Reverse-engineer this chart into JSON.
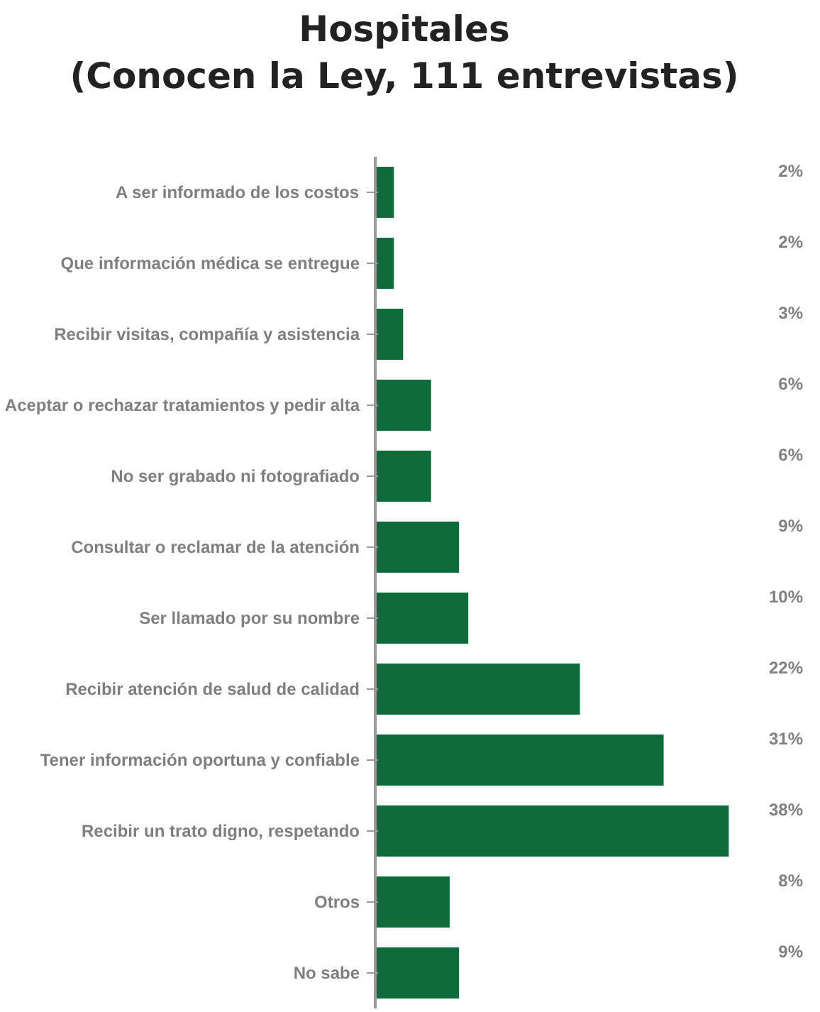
{
  "chart_data": {
    "type": "bar",
    "orientation": "horizontal",
    "title": "Hospitales\n(Conocen la Ley, 111 entrevistas)",
    "categories": [
      "A ser informado de los costos",
      "Que información médica se entregue",
      "Recibir visitas, compañía y asistencia",
      "Aceptar o rechazar tratamientos y pedir alta",
      "No ser grabado ni fotografiado",
      "Consultar o reclamar de la atención",
      "Ser llamado por su nombre",
      "Recibir atención de salud de calidad",
      "Tener información oportuna y confiable",
      "Recibir un trato digno, respetando",
      "Otros",
      "No sabe"
    ],
    "values": [
      2,
      2,
      3,
      6,
      6,
      9,
      10,
      22,
      31,
      38,
      8,
      9
    ],
    "value_labels": [
      "2%",
      "2%",
      "3%",
      "6%",
      "6%",
      "9%",
      "10%",
      "22%",
      "31%",
      "38%",
      "8%",
      "9%"
    ],
    "color": "#0e6b3a",
    "grid": false
  }
}
